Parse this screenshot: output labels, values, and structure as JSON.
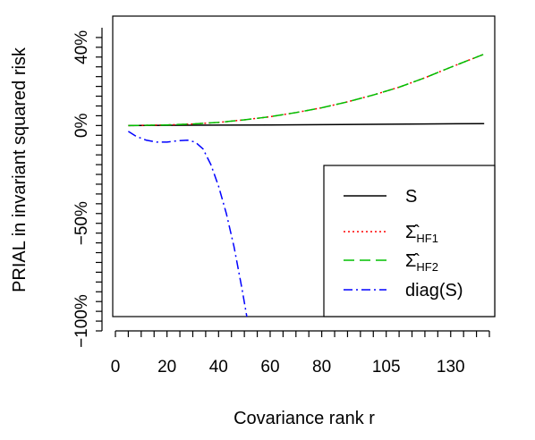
{
  "chart_data": {
    "type": "line",
    "title": "",
    "xlabel": "Covariance rank r",
    "ylabel": "PRIAL in invariant squared risk",
    "xlim": [
      0,
      145
    ],
    "ylim": [
      -105,
      50
    ],
    "x_tick_labels": [
      {
        "value": 0,
        "label": "0"
      },
      {
        "value": 20,
        "label": "20"
      },
      {
        "value": 40,
        "label": "40"
      },
      {
        "value": 60,
        "label": "60"
      },
      {
        "value": 80,
        "label": "80"
      },
      {
        "value": 105,
        "label": "105"
      },
      {
        "value": 130,
        "label": "130"
      }
    ],
    "x_minor_ticks": [
      0,
      5,
      10,
      15,
      20,
      25,
      30,
      35,
      40,
      45,
      50,
      55,
      60,
      65,
      70,
      75,
      80,
      85,
      90,
      95,
      100,
      105,
      110,
      115,
      120,
      125,
      130,
      135,
      140,
      145
    ],
    "y_tick_labels": [
      {
        "value": 40,
        "label": "40%"
      },
      {
        "value": 0,
        "label": "0%"
      },
      {
        "value": -50,
        "label": "−50%"
      },
      {
        "value": -100,
        "label": "−100%"
      }
    ],
    "y_minor_ticks": [
      45,
      40,
      35,
      30,
      25,
      20,
      15,
      10,
      5,
      0,
      -5,
      -10,
      -15,
      -20,
      -25,
      -30,
      -35,
      -40,
      -45,
      -50,
      -55,
      -60,
      -65,
      -70,
      -75,
      -80,
      -85,
      -90,
      -95,
      -100,
      -105
    ],
    "grid": false,
    "legend_position": "bottom-right",
    "series": [
      {
        "name": "S",
        "label_main": "S",
        "label_sub": "",
        "color": "#000000",
        "dash": "",
        "x": [
          5,
          20,
          40,
          60,
          80,
          100,
          120,
          143
        ],
        "y": [
          0,
          0.1,
          0.2,
          0.3,
          0.45,
          0.6,
          0.8,
          1.0
        ]
      },
      {
        "name": "Σ̂HF1",
        "label_main": "Σ̂",
        "label_sub": "HF1",
        "color": "#ff0000",
        "dash": "2,3",
        "x": [
          5,
          20,
          30,
          40,
          50,
          60,
          70,
          80,
          90,
          100,
          110,
          120,
          130,
          143
        ],
        "y": [
          0,
          0.3,
          0.8,
          1.6,
          2.9,
          4.5,
          6.6,
          9.1,
          12.1,
          15.6,
          19.6,
          24.4,
          29.8,
          36.5
        ]
      },
      {
        "name": "Σ̂HF2",
        "label_main": "Σ̂",
        "label_sub": "HF2",
        "color": "#00c000",
        "dash": "12,6",
        "x": [
          5,
          20,
          30,
          40,
          50,
          60,
          70,
          80,
          90,
          100,
          110,
          120,
          130,
          143
        ],
        "y": [
          0,
          0.3,
          0.8,
          1.6,
          2.9,
          4.5,
          6.6,
          9.1,
          12.1,
          15.6,
          19.6,
          24.4,
          29.8,
          36.5
        ]
      },
      {
        "name": "diag(S)",
        "label_main": "diag(S)",
        "label_sub": "",
        "color": "#0000ff",
        "dash": "10,4,2,4",
        "x": [
          5,
          8,
          12,
          16,
          20,
          24,
          28,
          31,
          34,
          37,
          40,
          43,
          46,
          49,
          51,
          52
        ],
        "y": [
          -3,
          -5.5,
          -7.5,
          -8.5,
          -8.5,
          -7.8,
          -7.5,
          -8.5,
          -12,
          -20,
          -31,
          -45,
          -62,
          -83,
          -98,
          -105
        ]
      }
    ]
  }
}
